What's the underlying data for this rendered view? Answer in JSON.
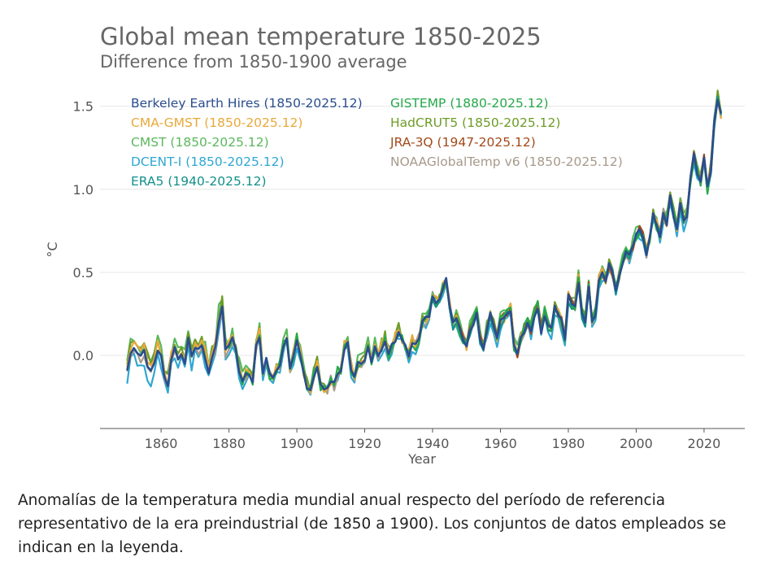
{
  "chart_data": {
    "type": "line",
    "title": "Global mean temperature 1850-2025",
    "subtitle": "Difference from 1850-1900 average",
    "xlabel": "Year",
    "ylabel": "°C",
    "xlim": [
      1842,
      2032
    ],
    "ylim": [
      -0.44,
      1.65
    ],
    "x_ticks": [
      1860,
      1880,
      1900,
      1920,
      1940,
      1960,
      1980,
      2000,
      2020
    ],
    "y_ticks": [
      0.0,
      0.5,
      1.0,
      1.5
    ],
    "y_tick_labels": [
      "0.0",
      "0.5",
      "1.0",
      "1.5"
    ],
    "grid": "horizontal",
    "legend_position": "top-left",
    "legend": [
      {
        "label": "Berkeley Earth Hires (1850-2025.12)",
        "color": "#2a4d8f"
      },
      {
        "label": "CMA-GMST (1850-2025.12)",
        "color": "#e8a93a"
      },
      {
        "label": "CMST (1850-2025.12)",
        "color": "#59b85c"
      },
      {
        "label": "DCENT-I (1850-2025.12)",
        "color": "#2fa7d1"
      },
      {
        "label": "ERA5 (1940-2025.12)",
        "color": "#13908a"
      },
      {
        "label": "GISTEMP (1880-2025.12)",
        "color": "#27a84a"
      },
      {
        "label": "HadCRUT5 (1850-2025.12)",
        "color": "#6d9c26"
      },
      {
        "label": "JRA-3Q (1947-2025.12)",
        "color": "#a34a1b"
      },
      {
        "label": "NOAAGlobalTemp v6 (1850-2025.12)",
        "color": "#a79a8b"
      }
    ],
    "reference_series": {
      "name": "Berkeley Earth Hires",
      "x_start": 1850,
      "values": [
        -0.08,
        0.02,
        0.05,
        0.03,
        -0.01,
        0.02,
        -0.05,
        -0.1,
        -0.03,
        0.04,
        -0.01,
        -0.12,
        -0.18,
        -0.02,
        0.05,
        -0.03,
        0.01,
        -0.05,
        0.1,
        0.0,
        0.06,
        0.03,
        0.05,
        0.0,
        -0.1,
        0.0,
        0.05,
        0.22,
        0.3,
        0.02,
        0.05,
        0.1,
        0.02,
        -0.08,
        -0.15,
        -0.12,
        -0.1,
        -0.15,
        0.05,
        0.12,
        -0.1,
        -0.03,
        -0.12,
        -0.15,
        -0.1,
        -0.05,
        0.05,
        0.1,
        -0.08,
        0.0,
        0.1,
        0.0,
        -0.1,
        -0.18,
        -0.22,
        -0.12,
        -0.05,
        -0.18,
        -0.2,
        -0.2,
        -0.15,
        -0.18,
        -0.1,
        -0.08,
        0.05,
        0.08,
        -0.08,
        -0.12,
        -0.05,
        -0.05,
        -0.02,
        0.05,
        -0.03,
        0.05,
        0.0,
        0.05,
        0.1,
        0.0,
        0.05,
        0.1,
        0.15,
        0.1,
        0.05,
        0.0,
        0.08,
        0.05,
        0.1,
        0.2,
        0.22,
        0.25,
        0.35,
        0.32,
        0.35,
        0.4,
        0.45,
        0.3,
        0.18,
        0.22,
        0.15,
        0.1,
        0.05,
        0.15,
        0.2,
        0.25,
        0.1,
        0.05,
        0.15,
        0.25,
        0.18,
        0.1,
        0.2,
        0.22,
        0.25,
        0.28,
        0.05,
        0.0,
        0.1,
        0.15,
        0.2,
        0.15,
        0.25,
        0.3,
        0.15,
        0.25,
        0.18,
        0.15,
        0.3,
        0.25,
        0.2,
        0.1,
        0.35,
        0.3,
        0.3,
        0.45,
        0.25,
        0.2,
        0.42,
        0.22,
        0.25,
        0.45,
        0.5,
        0.45,
        0.55,
        0.5,
        0.4,
        0.48,
        0.55,
        0.62,
        0.6,
        0.65,
        0.72,
        0.75,
        0.72,
        0.62,
        0.7,
        0.85,
        0.78,
        0.72,
        0.85,
        0.8,
        0.95,
        0.85,
        0.75,
        0.9,
        0.8,
        0.85,
        1.05,
        1.2,
        1.1,
        1.05,
        1.2,
        1.0,
        1.12,
        1.4,
        1.55,
        1.45
      ]
    },
    "datasets": [
      {
        "name": "Berkeley Earth Hires",
        "start": 1850,
        "key": "berkeley",
        "seed": 11,
        "noise": 0.02,
        "bias": 0.0
      },
      {
        "name": "CMA-GMST",
        "start": 1850,
        "key": "cma",
        "seed": 23,
        "noise": 0.035,
        "bias": 0.02
      },
      {
        "name": "CMST",
        "start": 1850,
        "key": "cmst",
        "seed": 37,
        "noise": 0.045,
        "bias": 0.05
      },
      {
        "name": "DCENT-I",
        "start": 1850,
        "key": "dcent",
        "seed": 41,
        "noise": 0.04,
        "bias": -0.05
      },
      {
        "name": "ERA5",
        "start": 1940,
        "key": "era5",
        "seed": 53,
        "noise": 0.03,
        "bias": -0.01
      },
      {
        "name": "GISTEMP",
        "start": 1880,
        "key": "gistemp",
        "seed": 67,
        "noise": 0.035,
        "bias": 0.01
      },
      {
        "name": "HadCRUT5",
        "start": 1850,
        "key": "hadcrut",
        "seed": 71,
        "noise": 0.035,
        "bias": 0.03
      },
      {
        "name": "JRA-3Q",
        "start": 1947,
        "key": "jra3q",
        "seed": 83,
        "noise": 0.03,
        "bias": 0.02
      },
      {
        "name": "NOAAGlobalTemp v6",
        "start": 1850,
        "key": "noaa",
        "seed": 97,
        "noise": 0.035,
        "bias": 0.0
      }
    ]
  },
  "caption": "Anomalías de la temperatura media mundial anual respecto del período de referencia representativo de la era preindustrial (de 1850 a 1900). Los conjuntos de datos empleados se indican en la leyenda."
}
